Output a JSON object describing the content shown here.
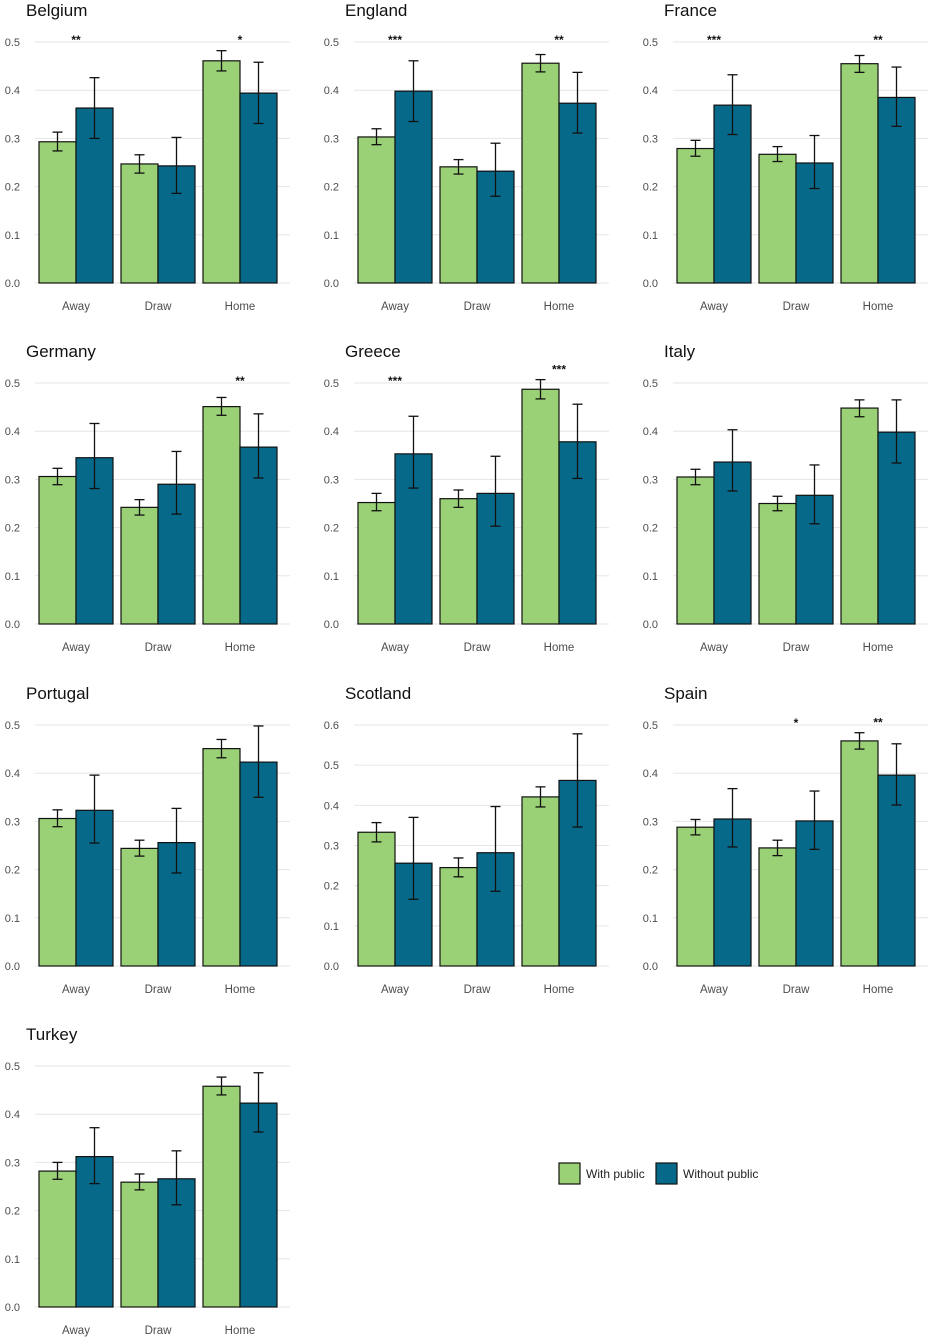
{
  "chart_data": {
    "type": "bar",
    "title": "",
    "xlabel": "",
    "ylabel": "",
    "colors": {
      "with_public": "#9ad176",
      "without_public": "#06698a",
      "bar_outline": "#111111",
      "grid": "#e6e6e6"
    },
    "legend": {
      "position": "bottom-right",
      "entries": [
        {
          "series": "with",
          "label": "With public"
        },
        {
          "series": "without",
          "label": "Without public"
        }
      ]
    },
    "categories": [
      "Away",
      "Draw",
      "Home"
    ],
    "panels": [
      {
        "title": "Belgium",
        "ylim": [
          0,
          0.5
        ],
        "ticks": [
          "0.0",
          "0.1",
          "0.2",
          "0.3",
          "0.4",
          "0.5"
        ],
        "series": [
          {
            "name": "With public",
            "key": "with",
            "values": [
              0.293,
              0.247,
              0.461
            ],
            "err_low": [
              0.274,
              0.228,
              0.44
            ],
            "err_high": [
              0.313,
              0.266,
              0.482
            ]
          },
          {
            "name": "Without public",
            "key": "without",
            "values": [
              0.363,
              0.243,
              0.394
            ],
            "err_low": [
              0.3,
              0.186,
              0.331
            ],
            "err_high": [
              0.426,
              0.302,
              0.458
            ]
          }
        ],
        "significance": [
          "**",
          "",
          "*"
        ]
      },
      {
        "title": "England",
        "ylim": [
          0,
          0.5
        ],
        "ticks": [
          "0.0",
          "0.1",
          "0.2",
          "0.3",
          "0.4",
          "0.5"
        ],
        "series": [
          {
            "name": "With public",
            "key": "with",
            "values": [
              0.303,
              0.241,
              0.456
            ],
            "err_low": [
              0.287,
              0.226,
              0.438
            ],
            "err_high": [
              0.32,
              0.256,
              0.474
            ]
          },
          {
            "name": "Without public",
            "key": "without",
            "values": [
              0.398,
              0.232,
              0.373
            ],
            "err_low": [
              0.335,
              0.18,
              0.311
            ],
            "err_high": [
              0.461,
              0.29,
              0.437
            ]
          }
        ],
        "significance": [
          "***",
          "",
          "**"
        ]
      },
      {
        "title": "France",
        "ylim": [
          0,
          0.5
        ],
        "ticks": [
          "0.0",
          "0.1",
          "0.2",
          "0.3",
          "0.4",
          "0.5"
        ],
        "series": [
          {
            "name": "With public",
            "key": "with",
            "values": [
              0.279,
              0.267,
              0.455
            ],
            "err_low": [
              0.263,
              0.252,
              0.437
            ],
            "err_high": [
              0.296,
              0.283,
              0.472
            ]
          },
          {
            "name": "Without public",
            "key": "without",
            "values": [
              0.369,
              0.249,
              0.385
            ],
            "err_low": [
              0.308,
              0.196,
              0.325
            ],
            "err_high": [
              0.432,
              0.306,
              0.448
            ]
          }
        ],
        "significance": [
          "***",
          "",
          "**"
        ]
      },
      {
        "title": "Germany",
        "ylim": [
          0,
          0.5
        ],
        "ticks": [
          "0.0",
          "0.1",
          "0.2",
          "0.3",
          "0.4",
          "0.5"
        ],
        "series": [
          {
            "name": "With public",
            "key": "with",
            "values": [
              0.306,
              0.242,
              0.451
            ],
            "err_low": [
              0.289,
              0.226,
              0.433
            ],
            "err_high": [
              0.323,
              0.258,
              0.47
            ]
          },
          {
            "name": "Without public",
            "key": "without",
            "values": [
              0.345,
              0.29,
              0.367
            ],
            "err_low": [
              0.281,
              0.228,
              0.303
            ],
            "err_high": [
              0.416,
              0.358,
              0.436
            ]
          }
        ],
        "significance": [
          "",
          "",
          "**"
        ]
      },
      {
        "title": "Greece",
        "ylim": [
          0,
          0.5
        ],
        "ticks": [
          "0.0",
          "0.1",
          "0.2",
          "0.3",
          "0.4",
          "0.5"
        ],
        "series": [
          {
            "name": "With public",
            "key": "with",
            "values": [
              0.252,
              0.26,
              0.487
            ],
            "err_low": [
              0.235,
              0.242,
              0.467
            ],
            "err_high": [
              0.271,
              0.278,
              0.507
            ]
          },
          {
            "name": "Without public",
            "key": "without",
            "values": [
              0.353,
              0.271,
              0.378
            ],
            "err_low": [
              0.282,
              0.203,
              0.302
            ],
            "err_high": [
              0.431,
              0.348,
              0.456
            ]
          }
        ],
        "significance": [
          "***",
          "",
          "***"
        ]
      },
      {
        "title": "Italy",
        "ylim": [
          0,
          0.5
        ],
        "ticks": [
          "0.0",
          "0.1",
          "0.2",
          "0.3",
          "0.4",
          "0.5"
        ],
        "series": [
          {
            "name": "With public",
            "key": "with",
            "values": [
              0.305,
              0.25,
              0.448
            ],
            "err_low": [
              0.289,
              0.235,
              0.43
            ],
            "err_high": [
              0.321,
              0.265,
              0.465
            ]
          },
          {
            "name": "Without public",
            "key": "without",
            "values": [
              0.336,
              0.267,
              0.398
            ],
            "err_low": [
              0.276,
              0.208,
              0.334
            ],
            "err_high": [
              0.403,
              0.33,
              0.465
            ]
          }
        ],
        "significance": [
          "",
          "",
          ""
        ]
      },
      {
        "title": "Portugal",
        "ylim": [
          0,
          0.5
        ],
        "ticks": [
          "0.0",
          "0.1",
          "0.2",
          "0.3",
          "0.4",
          "0.5"
        ],
        "series": [
          {
            "name": "With public",
            "key": "with",
            "values": [
              0.306,
              0.244,
              0.451
            ],
            "err_low": [
              0.289,
              0.228,
              0.432
            ],
            "err_high": [
              0.324,
              0.261,
              0.47
            ]
          },
          {
            "name": "Without public",
            "key": "without",
            "values": [
              0.323,
              0.256,
              0.423
            ],
            "err_low": [
              0.255,
              0.193,
              0.35
            ],
            "err_high": [
              0.396,
              0.327,
              0.498
            ]
          }
        ],
        "significance": [
          "",
          "",
          ""
        ]
      },
      {
        "title": "Scotland",
        "ylim": [
          0,
          0.6
        ],
        "ticks": [
          "0.0",
          "0.1",
          "0.2",
          "0.3",
          "0.4",
          "0.5",
          "0.6"
        ],
        "series": [
          {
            "name": "With public",
            "key": "with",
            "values": [
              0.333,
              0.245,
              0.421
            ],
            "err_low": [
              0.309,
              0.222,
              0.396
            ],
            "err_high": [
              0.357,
              0.269,
              0.446
            ]
          },
          {
            "name": "Without public",
            "key": "without",
            "values": [
              0.256,
              0.282,
              0.462
            ],
            "err_low": [
              0.166,
              0.186,
              0.346
            ],
            "err_high": [
              0.37,
              0.397,
              0.578
            ]
          }
        ],
        "significance": [
          "",
          "",
          ""
        ]
      },
      {
        "title": "Spain",
        "ylim": [
          0,
          0.5
        ],
        "ticks": [
          "0.0",
          "0.1",
          "0.2",
          "0.3",
          "0.4",
          "0.5"
        ],
        "series": [
          {
            "name": "With public",
            "key": "with",
            "values": [
              0.288,
              0.245,
              0.467
            ],
            "err_low": [
              0.272,
              0.229,
              0.45
            ],
            "err_high": [
              0.304,
              0.261,
              0.484
            ]
          },
          {
            "name": "Without public",
            "key": "without",
            "values": [
              0.305,
              0.301,
              0.396
            ],
            "err_low": [
              0.247,
              0.242,
              0.334
            ],
            "err_high": [
              0.368,
              0.363,
              0.461
            ]
          }
        ],
        "significance": [
          "",
          "*",
          "**"
        ]
      },
      {
        "title": "Turkey",
        "ylim": [
          0,
          0.5
        ],
        "ticks": [
          "0.0",
          "0.1",
          "0.2",
          "0.3",
          "0.4",
          "0.5"
        ],
        "series": [
          {
            "name": "With public",
            "key": "with",
            "values": [
              0.282,
              0.259,
              0.458
            ],
            "err_low": [
              0.265,
              0.243,
              0.44
            ],
            "err_high": [
              0.3,
              0.276,
              0.477
            ]
          },
          {
            "name": "Without public",
            "key": "without",
            "values": [
              0.312,
              0.266,
              0.423
            ],
            "err_low": [
              0.256,
              0.212,
              0.363
            ],
            "err_high": [
              0.372,
              0.324,
              0.486
            ]
          }
        ],
        "significance": [
          "",
          "",
          ""
        ]
      }
    ]
  }
}
